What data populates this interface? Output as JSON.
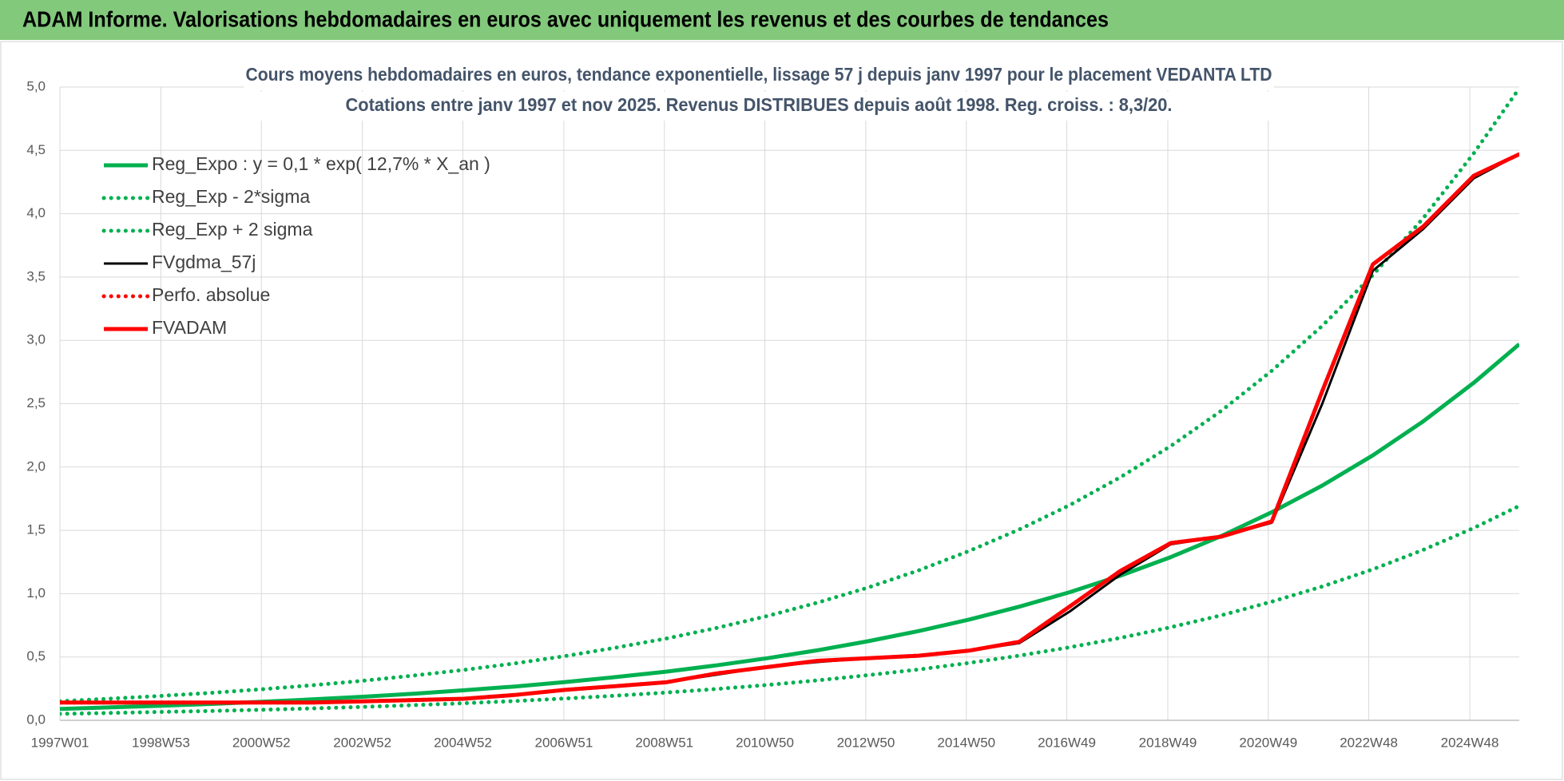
{
  "header": {
    "title": "ADAM Informe. Valorisations hebdomadaires en euros avec uniquement les revenus et des courbes de tendances"
  },
  "chart_data": {
    "type": "line",
    "title": [
      "Cours moyens hebdomadaires en euros, tendance exponentielle, lissage 57 j depuis janv 1997 pour le placement VEDANTA LTD",
      "Cotations entre janv 1997 et nov 2025. Revenus DISTRIBUES depuis août 1998. Reg. croiss. : 8,3/20."
    ],
    "x": [
      1997,
      1998,
      1999,
      2000,
      2001,
      2002,
      2003,
      2004,
      2005,
      2006,
      2007,
      2008,
      2009,
      2010,
      2011,
      2012,
      2013,
      2014,
      2015,
      2016,
      2017,
      2018,
      2019,
      2020,
      2021,
      2022,
      2023,
      2024,
      2025,
      2025.9
    ],
    "xlim": [
      1997,
      2025.9
    ],
    "xticks": [
      {
        "value": 1997,
        "label": "1997W01"
      },
      {
        "value": 1999,
        "label": "1998W53"
      },
      {
        "value": 2000.99,
        "label": "2000W52"
      },
      {
        "value": 2002.99,
        "label": "2002W52"
      },
      {
        "value": 2004.98,
        "label": "2004W52"
      },
      {
        "value": 2006.98,
        "label": "2006W51"
      },
      {
        "value": 2008.97,
        "label": "2008W51"
      },
      {
        "value": 2010.96,
        "label": "2010W50"
      },
      {
        "value": 2012.96,
        "label": "2012W50"
      },
      {
        "value": 2014.95,
        "label": "2014W50"
      },
      {
        "value": 2016.94,
        "label": "2016W49"
      },
      {
        "value": 2018.94,
        "label": "2018W49"
      },
      {
        "value": 2020.93,
        "label": "2020W49"
      },
      {
        "value": 2022.92,
        "label": "2022W48"
      },
      {
        "value": 2024.92,
        "label": "2024W48"
      }
    ],
    "ylim": [
      0,
      5
    ],
    "yticks": [
      {
        "value": 0,
        "label": "0,0"
      },
      {
        "value": 0.5,
        "label": "0,5"
      },
      {
        "value": 1,
        "label": "1,0"
      },
      {
        "value": 1.5,
        "label": "1,5"
      },
      {
        "value": 2,
        "label": "2,0"
      },
      {
        "value": 2.5,
        "label": "2,5"
      },
      {
        "value": 3,
        "label": "3,0"
      },
      {
        "value": 3.5,
        "label": "3,5"
      },
      {
        "value": 4,
        "label": "4,0"
      },
      {
        "value": 4.5,
        "label": "4,5"
      },
      {
        "value": 5,
        "label": "5,0"
      }
    ],
    "grid": true,
    "legend": "upper left",
    "series": [
      {
        "name": "Reg_Expo : y = 0,1 * exp( 12,7% *  X_an )",
        "color": "#00b050",
        "style": "solid",
        "values": [
          0.09,
          0.102,
          0.115,
          0.129,
          0.146,
          0.165,
          0.186,
          0.21,
          0.237,
          0.267,
          0.302,
          0.341,
          0.384,
          0.434,
          0.49,
          0.553,
          0.624,
          0.704,
          0.795,
          0.897,
          1.012,
          1.142,
          1.289,
          1.455,
          1.643,
          1.854,
          2.092,
          2.361,
          2.665,
          2.97
        ]
      },
      {
        "name": "Reg_Exp - 2*sigma",
        "color": "#00b050",
        "style": "dotted",
        "values": [
          0.051,
          0.058,
          0.066,
          0.074,
          0.083,
          0.094,
          0.106,
          0.12,
          0.135,
          0.152,
          0.172,
          0.194,
          0.219,
          0.247,
          0.279,
          0.315,
          0.356,
          0.401,
          0.453,
          0.511,
          0.577,
          0.651,
          0.735,
          0.829,
          0.937,
          1.057,
          1.192,
          1.346,
          1.519,
          1.693
        ]
      },
      {
        "name": "Reg_Exp + 2 sigma",
        "color": "#00b050",
        "style": "dotted",
        "values": [
          0.151,
          0.171,
          0.193,
          0.217,
          0.245,
          0.277,
          0.312,
          0.353,
          0.398,
          0.449,
          0.507,
          0.573,
          0.645,
          0.729,
          0.823,
          0.929,
          1.048,
          1.183,
          1.336,
          1.507,
          1.7,
          1.919,
          2.166,
          2.444,
          2.76,
          3.115,
          3.515,
          3.966,
          4.477,
          4.99
        ]
      },
      {
        "name": "FVgdma_57j",
        "color": "#000000",
        "style": "solid",
        "values": [
          0.14,
          0.14,
          0.14,
          0.14,
          0.14,
          0.14,
          0.15,
          0.16,
          0.17,
          0.2,
          0.24,
          0.27,
          0.3,
          0.36,
          0.42,
          0.46,
          0.49,
          0.51,
          0.55,
          0.61,
          0.86,
          1.15,
          1.39,
          1.45,
          1.56,
          2.5,
          3.55,
          3.88,
          4.28,
          4.47
        ]
      },
      {
        "name": "Perfo. absolue",
        "color": "#ff0000",
        "style": "dotted",
        "values": [
          0.14,
          0.14,
          0.14,
          0.14,
          0.14,
          0.14,
          0.15,
          0.16,
          0.17,
          0.2,
          0.24,
          0.27,
          0.3,
          0.37,
          0.42,
          0.47,
          0.49,
          0.51,
          0.55,
          0.62,
          0.9,
          1.18,
          1.4,
          1.45,
          1.57,
          2.6,
          3.6,
          3.9,
          4.3,
          4.47
        ]
      },
      {
        "name": "FVADAM",
        "color": "#ff0000",
        "style": "solid",
        "values": [
          0.14,
          0.14,
          0.14,
          0.14,
          0.14,
          0.14,
          0.15,
          0.16,
          0.17,
          0.2,
          0.24,
          0.27,
          0.3,
          0.37,
          0.42,
          0.47,
          0.49,
          0.51,
          0.55,
          0.62,
          0.9,
          1.18,
          1.4,
          1.45,
          1.57,
          2.6,
          3.6,
          3.9,
          4.3,
          4.47
        ]
      }
    ]
  }
}
